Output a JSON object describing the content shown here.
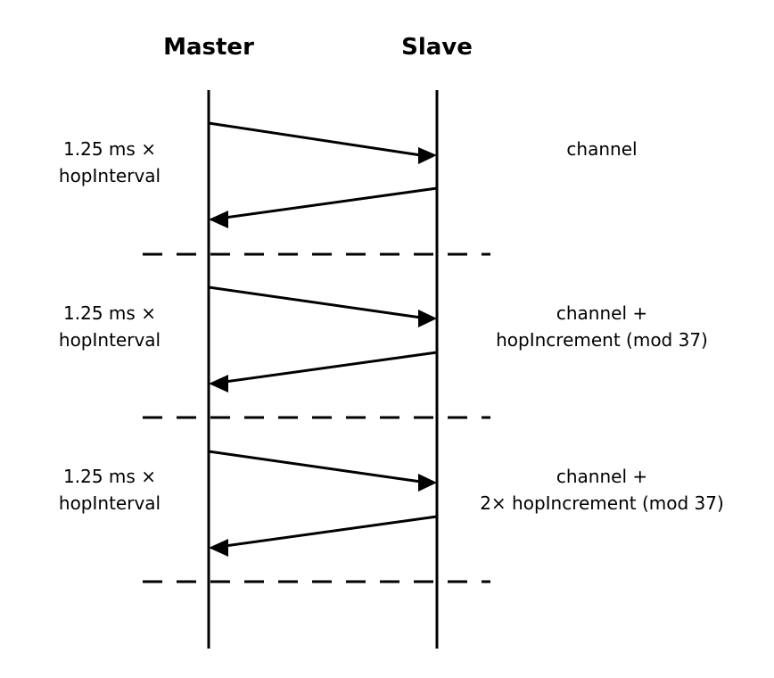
{
  "headers": {
    "master": "Master",
    "slave": "Slave"
  },
  "intervals": [
    {
      "time_line1": "1.25 ms ×",
      "time_line2": "hopInterval",
      "channel_line1": "channel",
      "channel_line2": ""
    },
    {
      "time_line1": "1.25 ms ×",
      "time_line2": "hopInterval",
      "channel_line1": "channel +",
      "channel_line2": "hopIncrement (mod 37)"
    },
    {
      "time_line1": "1.25 ms ×",
      "time_line2": "hopInterval",
      "channel_line1": "channel +",
      "channel_line2": "2× hopIncrement (mod 37)"
    }
  ]
}
